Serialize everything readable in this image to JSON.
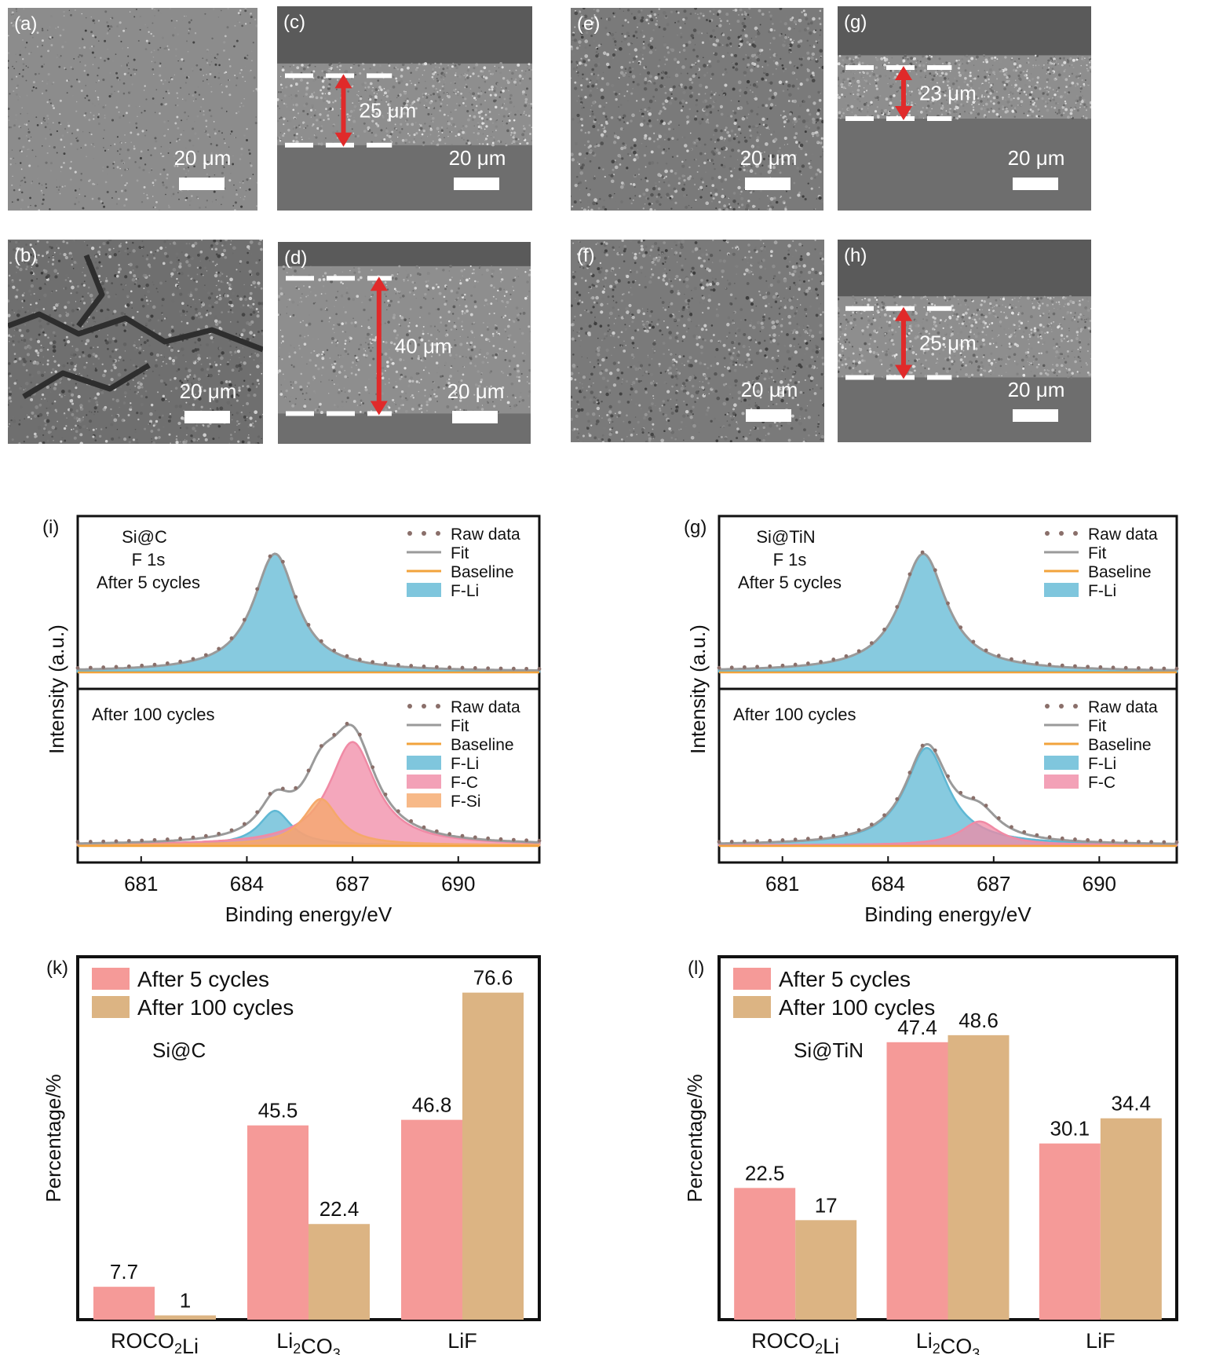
{
  "sem": [
    {
      "letter": "(a)",
      "scale": "20 μm",
      "kind": "top",
      "texture": "fine"
    },
    {
      "letter": "(c)",
      "scale": "20 μm",
      "kind": "cross",
      "thickness": "25 μm",
      "texture": "fine"
    },
    {
      "letter": "(e)",
      "scale": "20 μm",
      "kind": "top",
      "texture": "medium"
    },
    {
      "letter": "(g)",
      "scale": "20 μm",
      "kind": "cross",
      "thickness": "23 μm",
      "texture": "fine"
    },
    {
      "letter": "(b)",
      "scale": "20 μm",
      "kind": "top",
      "texture": "cracked"
    },
    {
      "letter": "(d)",
      "scale": "20 μm",
      "kind": "cross",
      "thickness": "40 μm",
      "texture": "coarse"
    },
    {
      "letter": "(f)",
      "scale": "20 μm",
      "kind": "top",
      "texture": "medium"
    },
    {
      "letter": "(h)",
      "scale": "20 μm",
      "kind": "cross",
      "thickness": "25 μm",
      "texture": "fine"
    }
  ],
  "colors": {
    "F-Li": "#5fb8d4",
    "F-C": "#f08aa5",
    "F-Si": "#f5a86a",
    "fit": "#9a9a9a",
    "baseline": "#f2a33c",
    "raw": "#8a6f6a",
    "bar5": "#f59a98",
    "bar100": "#dcb483",
    "arrow": "#e02a2a"
  },
  "chart_data": [
    {
      "panel": "(i)",
      "type": "line",
      "sample": "Si@C",
      "element": "F 1s",
      "xlabel": "Binding energy/eV",
      "ylabel": "Intensity (a.u.)",
      "xticks": [
        681,
        684,
        687,
        690
      ],
      "xlim": [
        679.2,
        692.3
      ],
      "subplots": [
        {
          "label": "After 5 cycles",
          "legend": [
            "Raw data",
            "Fit",
            "Baseline",
            "F-Li"
          ],
          "components": [
            {
              "name": "F-Li",
              "center": 684.8,
              "height": 1.0,
              "width": 0.75
            }
          ]
        },
        {
          "label": "After 100 cycles",
          "legend": [
            "Raw data",
            "Fit",
            "Baseline",
            "F-Li",
            "F-C",
            "F-Si"
          ],
          "components": [
            {
              "name": "F-Li",
              "center": 684.8,
              "height": 0.29,
              "width": 0.55
            },
            {
              "name": "F-C",
              "center": 687.0,
              "height": 0.87,
              "width": 0.8
            },
            {
              "name": "F-Si",
              "center": 686.1,
              "height": 0.39,
              "width": 0.6
            }
          ]
        }
      ]
    },
    {
      "panel": "(g)",
      "type": "line",
      "sample": "Si@TiN",
      "element": "F 1s",
      "xlabel": "Binding energy/eV",
      "ylabel": "Intensity (a.u.)",
      "xticks": [
        681,
        684,
        687,
        690
      ],
      "xlim": [
        679.2,
        692.2
      ],
      "subplots": [
        {
          "label": "After 5 cycles",
          "legend": [
            "Raw data",
            "Fit",
            "Baseline",
            "F-Li"
          ],
          "components": [
            {
              "name": "F-Li",
              "center": 685.0,
              "height": 1.0,
              "width": 0.8
            }
          ]
        },
        {
          "label": "After 100 cycles",
          "legend": [
            "Raw data",
            "Fit",
            "Baseline",
            "F-Li",
            "F-C"
          ],
          "components": [
            {
              "name": "F-Li",
              "center": 685.1,
              "height": 0.82,
              "width": 0.75
            },
            {
              "name": "F-C",
              "center": 686.6,
              "height": 0.2,
              "width": 0.65
            }
          ]
        }
      ]
    },
    {
      "panel": "(k)",
      "type": "bar",
      "sample": "Si@C",
      "ylabel": "Percentage/%",
      "ylim": [
        0,
        85
      ],
      "categories": [
        "ROCO2Li",
        "Li2CO3",
        "LiF"
      ],
      "series": [
        {
          "name": "After 5 cycles",
          "values": [
            7.7,
            45.5,
            46.8
          ]
        },
        {
          "name": "After 100 cycles",
          "values": [
            1,
            22.4,
            76.6
          ]
        }
      ]
    },
    {
      "panel": "(l)",
      "type": "bar",
      "sample": "Si@TiN",
      "ylabel": "Percentage/%",
      "ylim": [
        0,
        62
      ],
      "categories": [
        "ROCO2Li",
        "Li2CO3",
        "LiF"
      ],
      "series": [
        {
          "name": "After 5 cycles",
          "values": [
            22.5,
            47.4,
            30.1
          ]
        },
        {
          "name": "After 100 cycles",
          "values": [
            17,
            48.6,
            34.4
          ]
        }
      ]
    }
  ]
}
